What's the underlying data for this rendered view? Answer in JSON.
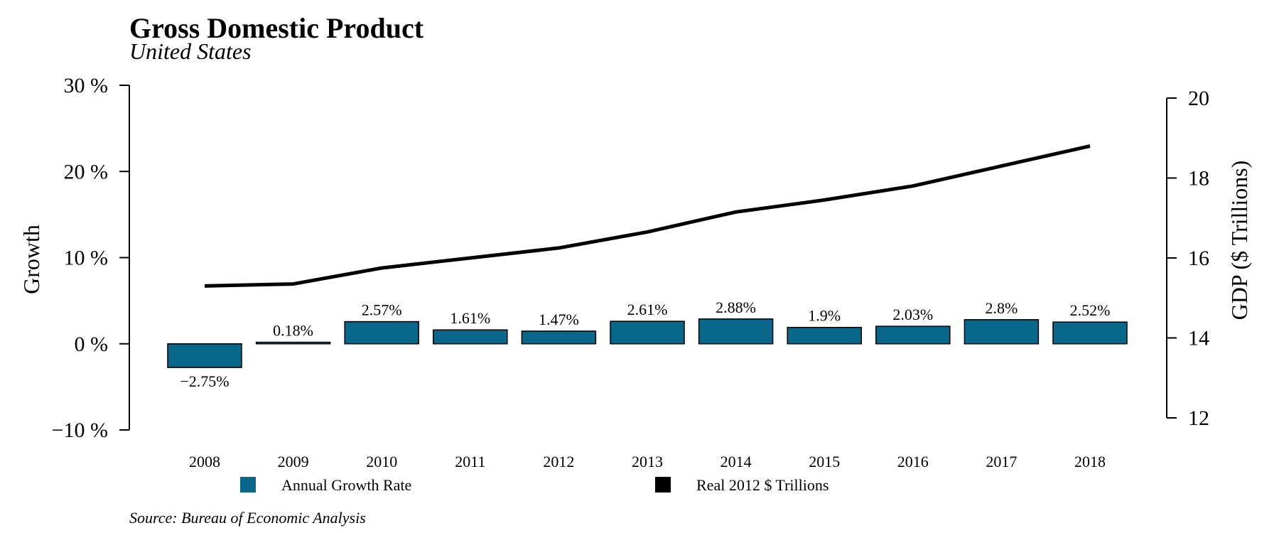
{
  "chart_data": {
    "type": "bar",
    "title": "Gross Domestic Product",
    "subtitle": "United States",
    "categories": [
      "2008",
      "2009",
      "2010",
      "2011",
      "2012",
      "2013",
      "2014",
      "2015",
      "2016",
      "2017",
      "2018"
    ],
    "series": [
      {
        "name": "Annual Growth Rate",
        "type": "bar",
        "axis": "left",
        "color": "#08678a",
        "values": [
          -2.75,
          0.18,
          2.57,
          1.61,
          1.47,
          2.61,
          2.88,
          1.9,
          2.03,
          2.8,
          2.52
        ],
        "labels": [
          "−2.75%",
          "0.18%",
          "2.57%",
          "1.61%",
          "1.47%",
          "2.61%",
          "2.88%",
          "1.9%",
          "2.03%",
          "2.8%",
          "2.52%"
        ]
      },
      {
        "name": "Real 2012 $ Trillions",
        "type": "line",
        "axis": "right",
        "color": "#000000",
        "values": [
          15.3,
          15.35,
          15.75,
          16.0,
          16.25,
          16.65,
          17.15,
          17.45,
          17.8,
          18.3,
          18.8
        ]
      }
    ],
    "y_left": {
      "label": "Growth",
      "ylim": [
        -10,
        30
      ],
      "ticks": [
        -10,
        0,
        10,
        20,
        30
      ],
      "tick_labels": [
        "−10 %",
        "0 %",
        "10 %",
        "20 %",
        "30 %"
      ]
    },
    "y_right": {
      "label": "GDP ($ Trillions)",
      "ylim": [
        12,
        20
      ],
      "ticks": [
        12,
        14,
        16,
        18,
        20
      ],
      "tick_labels": [
        "12",
        "14",
        "16",
        "18",
        "20"
      ]
    },
    "legend": {
      "placement": "bottom",
      "items": [
        {
          "label": "Annual Growth Rate",
          "color": "#08678a"
        },
        {
          "label": "Real 2012 $ Trillions",
          "color": "#000000"
        }
      ]
    },
    "grid": false,
    "source": "Source: Bureau of Economic Analysis"
  }
}
